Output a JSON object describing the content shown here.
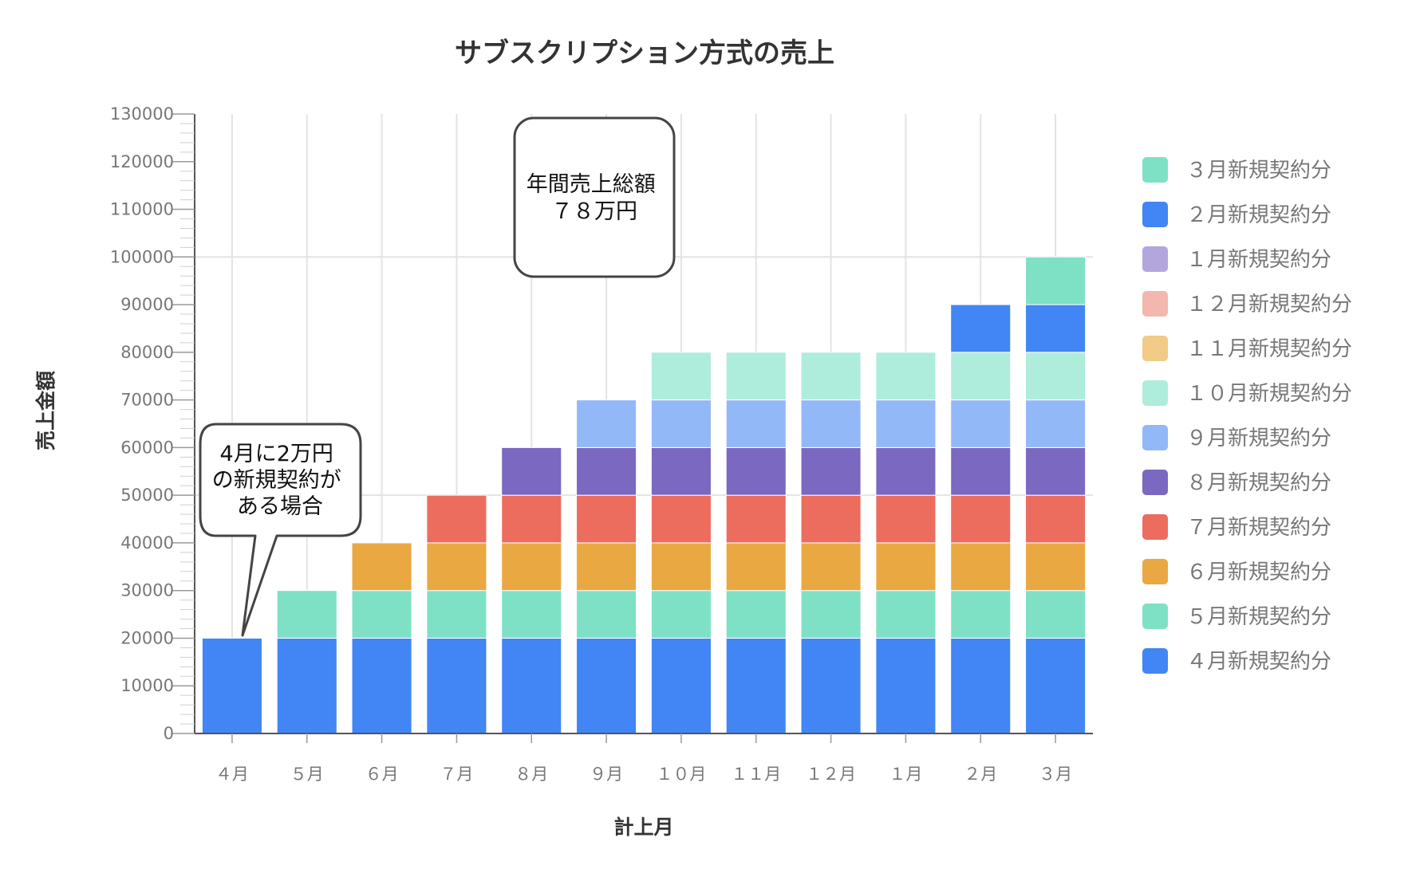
{
  "chart_data": {
    "type": "bar",
    "stacked": true,
    "title": "サブスクリプション方式の売上",
    "xlabel": "計上月",
    "ylabel": "売上金額",
    "ylim": [
      0,
      130000
    ],
    "y_ticks": [
      "0",
      "10000",
      "20000",
      "30000",
      "40000",
      "50000",
      "60000",
      "70000",
      "80000",
      "90000",
      "100000",
      "110000",
      "120000",
      "130000"
    ],
    "categories": [
      "４月",
      "５月",
      "６月",
      "７月",
      "８月",
      "９月",
      "１０月",
      "１１月",
      "１２月",
      "１月",
      "２月",
      "３月"
    ],
    "grid": true,
    "legend_position": "right",
    "series": [
      {
        "name": "４月新規契約分",
        "color": "#4285f4",
        "values": [
          20000,
          20000,
          20000,
          20000,
          20000,
          20000,
          20000,
          20000,
          20000,
          20000,
          20000,
          20000
        ]
      },
      {
        "name": "５月新規契約分",
        "color": "#7ee1c5",
        "values": [
          0,
          10000,
          10000,
          10000,
          10000,
          10000,
          10000,
          10000,
          10000,
          10000,
          10000,
          10000
        ]
      },
      {
        "name": "６月新規契約分",
        "color": "#e9a842",
        "values": [
          0,
          0,
          10000,
          10000,
          10000,
          10000,
          10000,
          10000,
          10000,
          10000,
          10000,
          10000
        ]
      },
      {
        "name": "７月新規契約分",
        "color": "#ec6d5e",
        "values": [
          0,
          0,
          0,
          10000,
          10000,
          10000,
          10000,
          10000,
          10000,
          10000,
          10000,
          10000
        ]
      },
      {
        "name": "８月新規契約分",
        "color": "#7b68c1",
        "values": [
          0,
          0,
          0,
          0,
          10000,
          10000,
          10000,
          10000,
          10000,
          10000,
          10000,
          10000
        ]
      },
      {
        "name": "９月新規契約分",
        "color": "#93b8f8",
        "values": [
          0,
          0,
          0,
          0,
          0,
          10000,
          10000,
          10000,
          10000,
          10000,
          10000,
          10000
        ]
      },
      {
        "name": "１０月新規契約分",
        "color": "#aeecdc",
        "values": [
          0,
          0,
          0,
          0,
          0,
          0,
          10000,
          10000,
          10000,
          10000,
          10000,
          10000
        ]
      },
      {
        "name": "１１月新規契約分",
        "color": "#f1cb87",
        "values": [
          0,
          0,
          0,
          0,
          0,
          0,
          0,
          0,
          0,
          0,
          0,
          0
        ]
      },
      {
        "name": "１２月新規契約分",
        "color": "#f3b7ae",
        "values": [
          0,
          0,
          0,
          0,
          0,
          0,
          0,
          0,
          0,
          0,
          0,
          0
        ]
      },
      {
        "name": "１月新規契約分",
        "color": "#b3a6dc",
        "values": [
          0,
          0,
          0,
          0,
          0,
          0,
          0,
          0,
          0,
          0,
          0,
          0
        ]
      },
      {
        "name": "２月新規契約分",
        "color": "#4285f4",
        "values": [
          0,
          0,
          0,
          0,
          0,
          0,
          0,
          0,
          0,
          0,
          10000,
          10000
        ]
      },
      {
        "name": "３月新規契約分",
        "color": "#7ee1c5",
        "values": [
          0,
          0,
          0,
          0,
          0,
          0,
          0,
          0,
          0,
          0,
          0,
          10000
        ]
      }
    ],
    "annotations": [
      {
        "lines": [
          "4月に2万円",
          "の新規契約が",
          "ある場合"
        ],
        "category": "４月",
        "value": 20000
      },
      {
        "lines": [
          "年間売上総額",
          "７８万円"
        ]
      }
    ]
  }
}
